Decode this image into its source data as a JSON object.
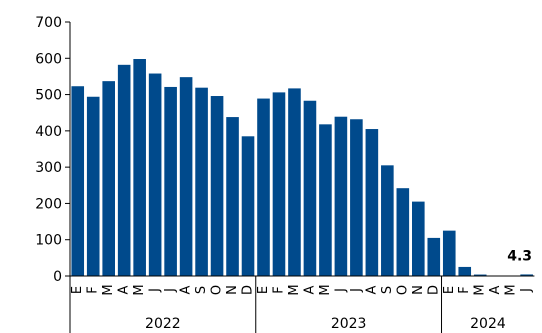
{
  "chart_data": {
    "type": "bar",
    "title": "",
    "xlabel": "",
    "ylabel": "",
    "ylim": [
      0,
      700
    ],
    "yticks": [
      0,
      100,
      200,
      300,
      400,
      500,
      600,
      700
    ],
    "grid": false,
    "legend": "none",
    "bar_color": "#004a8c",
    "categories": [
      "E",
      "F",
      "M",
      "A",
      "M",
      "J",
      "J",
      "A",
      "S",
      "O",
      "N",
      "D",
      "E",
      "F",
      "M",
      "A",
      "M",
      "J",
      "J",
      "A",
      "S",
      "O",
      "N",
      "D",
      "E",
      "F",
      "M",
      "A",
      "M",
      "J"
    ],
    "values": [
      523,
      494,
      537,
      582,
      598,
      558,
      521,
      548,
      519,
      496,
      438,
      385,
      489,
      506,
      517,
      483,
      418,
      439,
      432,
      405,
      305,
      242,
      205,
      105,
      125,
      25,
      4,
      1,
      0,
      4.3
    ],
    "year_groups": [
      {
        "label": "2022",
        "count": 12
      },
      {
        "label": "2023",
        "count": 12
      },
      {
        "label": "2024",
        "count": 6
      }
    ],
    "annotations": [
      {
        "index": 29,
        "text": "4.3"
      }
    ]
  }
}
